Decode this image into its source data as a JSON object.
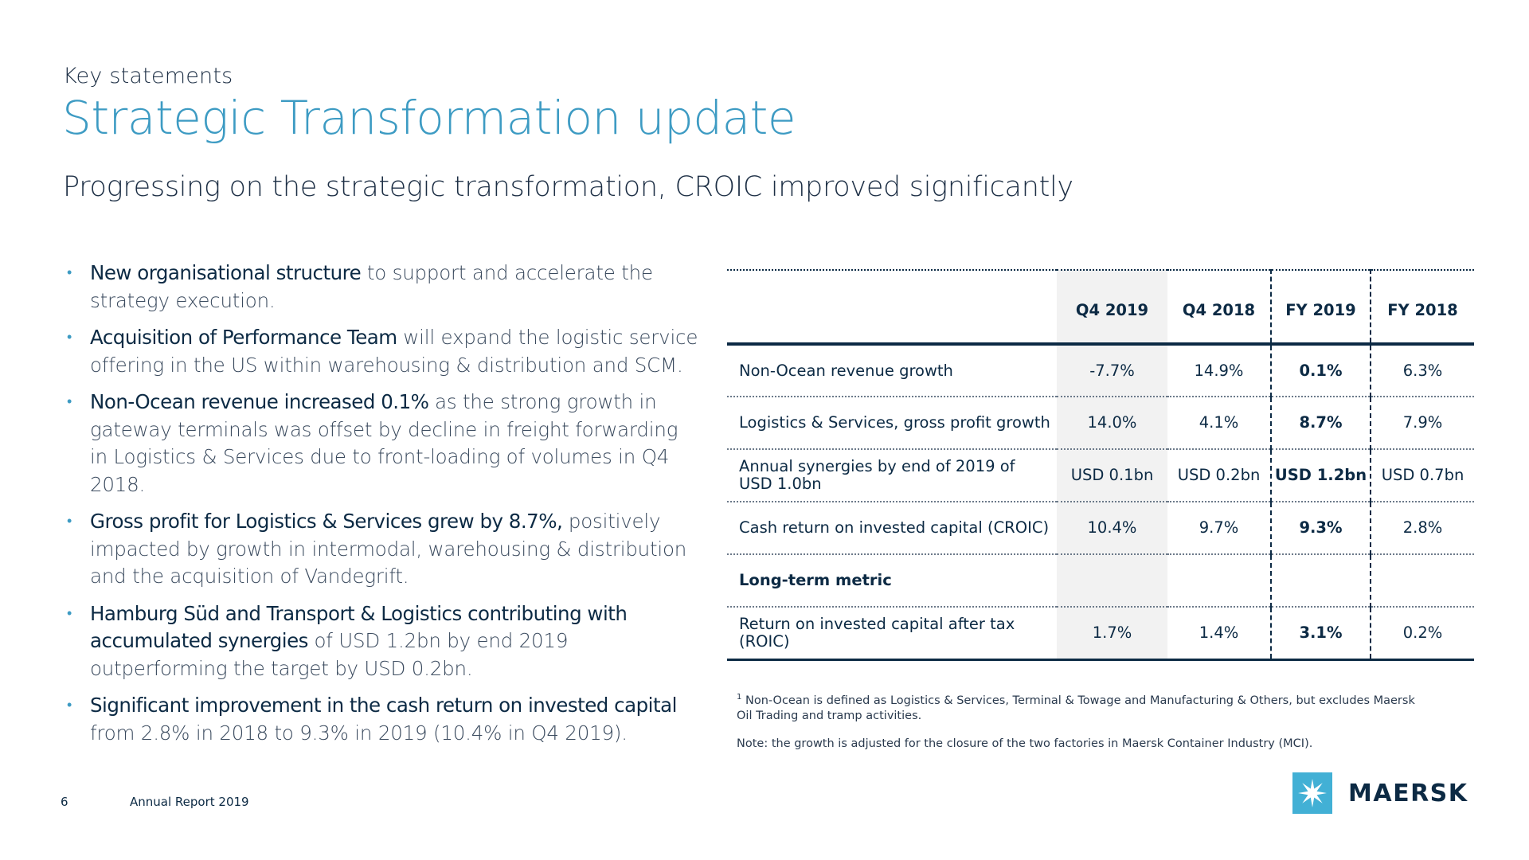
{
  "header": {
    "kicker": "Key statements",
    "title": "Strategic Transformation update",
    "subtitle": "Progressing on the strategic transformation, CROIC improved significantly"
  },
  "bullets": [
    {
      "strong": "New organisational structure",
      "rest": " to support and accelerate the strategy execution."
    },
    {
      "strong": "Acquisition of Performance Team",
      "rest": " will expand the logistic service offering in the US within warehousing & distribution and SCM."
    },
    {
      "strong": "Non-Ocean revenue increased 0.1%",
      "rest": " as the strong growth in gateway terminals was offset by decline in freight forwarding in Logistics & Services due to front-loading of volumes in Q4 2018."
    },
    {
      "strong": "Gross profit for Logistics & Services grew by 8.7%,",
      "rest": " positively impacted by growth in intermodal, warehousing & distribution and the acquisition of Vandegrift."
    },
    {
      "strong": "Hamburg Süd and Transport & Logistics contributing with accumulated synergies",
      "rest": " of USD 1.2bn by end 2019 outperforming the target by USD 0.2bn."
    },
    {
      "strong": "Significant improvement in the cash return on invested capital",
      "rest": " from 2.8% in 2018 to 9.3% in 2019 (10.4% in Q4 2019)."
    }
  ],
  "table": {
    "columns": [
      "Q4 2019",
      "Q4 2018",
      "FY 2019",
      "FY 2018"
    ],
    "rows": [
      {
        "label": "Non-Ocean revenue growth",
        "values": [
          "-7.7%",
          "14.9%",
          "0.1%",
          "6.3%"
        ]
      },
      {
        "label": "Logistics & Services, gross profit growth",
        "values": [
          "14.0%",
          "4.1%",
          "8.7%",
          "7.9%"
        ]
      },
      {
        "label": "Annual synergies by end of 2019 of USD 1.0bn",
        "values": [
          "USD 0.1bn",
          "USD 0.2bn",
          "USD 1.2bn",
          "USD 0.7bn"
        ]
      },
      {
        "label": "Cash return on invested capital (CROIC)",
        "values": [
          "10.4%",
          "9.7%",
          "9.3%",
          "2.8%"
        ]
      },
      {
        "label": "Long-term metric",
        "values": [
          "",
          "",
          "",
          ""
        ]
      },
      {
        "label": "Return on invested capital after tax (ROIC)",
        "values": [
          "1.7%",
          "1.4%",
          "3.1%",
          "0.2%"
        ]
      }
    ]
  },
  "footnotes": {
    "marker": "1",
    "note1": "Non-Ocean is defined as Logistics & Services, Terminal & Towage and Manufacturing & Others, but excludes Maersk Oil Trading and tramp activities.",
    "note2": "Note: the growth is adjusted for the closure of the two factories in Maersk Container Industry (MCI)."
  },
  "footer": {
    "page_number": "6",
    "report_name": "Annual Report 2019",
    "logo_text": "MAERSK",
    "logo_color": "#42b0d5"
  }
}
